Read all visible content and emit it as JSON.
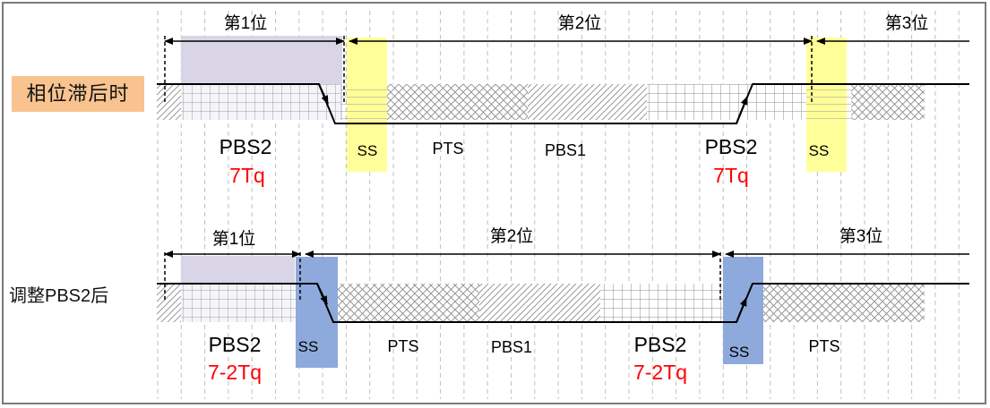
{
  "rows": {
    "top": {
      "label": "相位滞后时",
      "bits": [
        "第1位",
        "第2位",
        "第3位"
      ],
      "segments": [
        "PBS2",
        "SS",
        "PTS",
        "PBS1",
        "PBS2",
        "SS"
      ],
      "tq": [
        "7Tq",
        "7Tq"
      ]
    },
    "bottom": {
      "label": "调整PBS2后",
      "bits": [
        "第1位",
        "第2位",
        "第3位"
      ],
      "segments": [
        "PBS2",
        "SS",
        "PTS",
        "PBS1",
        "PBS2",
        "SS",
        "PTS"
      ],
      "tq": [
        "7-2Tq",
        "7-2Tq"
      ]
    }
  },
  "colors": {
    "badge_bg": "#f8c38f",
    "ss_top": "#ffff99",
    "ss_bottom": "#8ea9db",
    "pbs2_prev": "#d9d5e6",
    "tq_text": "#ff0000",
    "wave": "#000000",
    "grid": "#bfbfbf"
  }
}
